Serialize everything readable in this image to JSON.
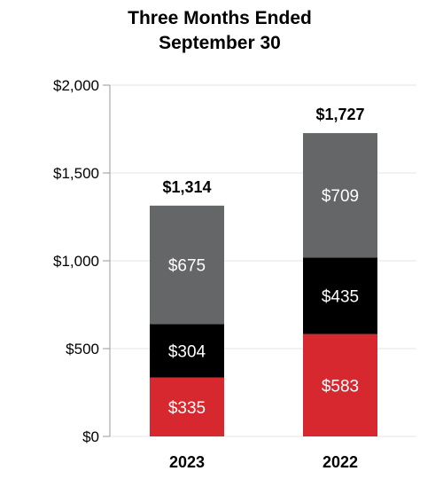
{
  "chart_data": {
    "type": "bar",
    "stacked": true,
    "title": [
      "Three Months Ended",
      "September 30"
    ],
    "categories": [
      "2023",
      "2022"
    ],
    "series": [
      {
        "color": "#d7282f",
        "values": [
          335,
          583
        ],
        "labels": [
          "$335",
          "$583"
        ]
      },
      {
        "color": "#000000",
        "values": [
          304,
          435
        ],
        "labels": [
          "$304",
          "$435"
        ]
      },
      {
        "color": "#646668",
        "values": [
          675,
          709
        ],
        "labels": [
          "$675",
          "$709"
        ]
      }
    ],
    "totals": [
      "$1,314",
      "$1,727"
    ],
    "ylim": [
      0,
      2000
    ],
    "yticks": [
      0,
      500,
      1000,
      1500,
      2000
    ],
    "ytick_labels": [
      "$0",
      "$500",
      "$1,000",
      "$1,500",
      "$2,000"
    ],
    "grid": true,
    "legend": "none"
  }
}
